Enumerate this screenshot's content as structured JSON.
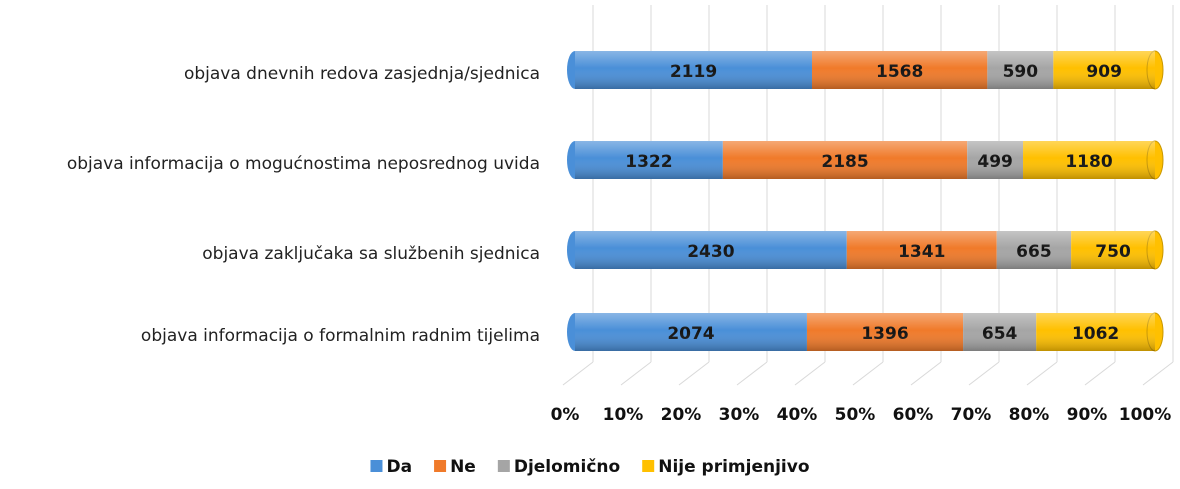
{
  "chart_data": {
    "type": "bar",
    "orientation": "horizontal",
    "stacking": "percent",
    "categories": [
      "objava dnevnih redova zasjednja/sjednica",
      "objava informacija o mogućnostima neposrednog uvida",
      "objava zaključaka sa službenih sjednica",
      "objava informacija o formalnim radnim tijelima"
    ],
    "series": [
      {
        "name": "Da",
        "color": "#4a8fd8",
        "values": [
          2119,
          1322,
          2430,
          2074
        ]
      },
      {
        "name": "Ne",
        "color": "#f07a2a",
        "values": [
          1568,
          2185,
          1341,
          1396
        ]
      },
      {
        "name": "Djelomično",
        "color": "#a5a5a5",
        "values": [
          590,
          499,
          665,
          654
        ]
      },
      {
        "name": "Nije primjenjivo",
        "color": "#ffc000",
        "values": [
          909,
          1180,
          750,
          1062
        ]
      }
    ],
    "xlim": [
      0,
      100
    ],
    "xticks": [
      {
        "value": 0,
        "label": "0%"
      },
      {
        "value": 10,
        "label": "10%"
      },
      {
        "value": 20,
        "label": "20%"
      },
      {
        "value": 30,
        "label": "30%"
      },
      {
        "value": 40,
        "label": "40%"
      },
      {
        "value": 50,
        "label": "50%"
      },
      {
        "value": 60,
        "label": "60%"
      },
      {
        "value": 70,
        "label": "70%"
      },
      {
        "value": 80,
        "label": "80%"
      },
      {
        "value": 90,
        "label": "90%"
      },
      {
        "value": 100,
        "label": "100%"
      }
    ],
    "grid": true,
    "legend": "bottom"
  }
}
